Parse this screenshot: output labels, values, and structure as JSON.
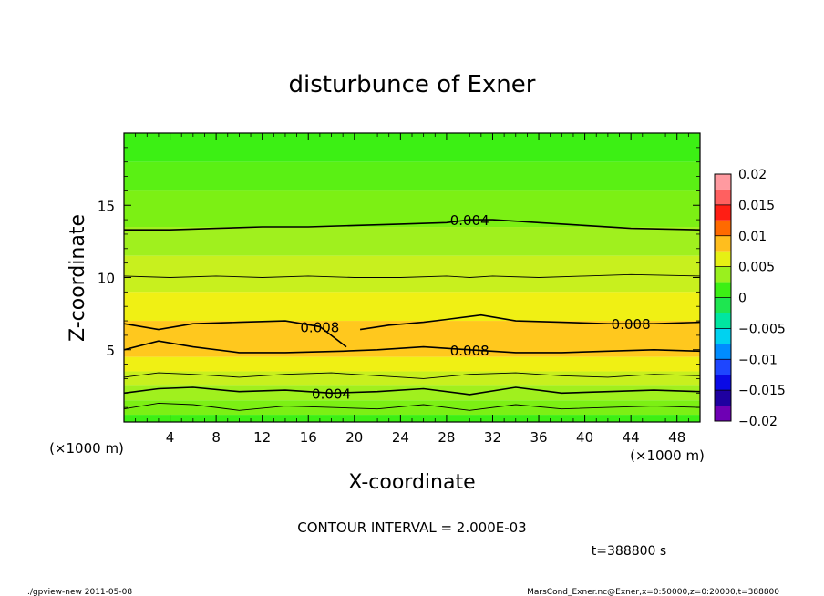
{
  "chart_data": {
    "type": "heatmap",
    "title": "disturbunce of Exner",
    "xlabel": "X-coordinate",
    "ylabel": "Z-coordinate",
    "x_unit_left": "(×1000 m)",
    "x_unit_right": "(×1000 m)",
    "xlim": [
      0,
      50
    ],
    "ylim": [
      0,
      20
    ],
    "xticks": [
      4,
      8,
      12,
      16,
      20,
      24,
      28,
      32,
      36,
      40,
      44,
      48
    ],
    "yticks": [
      5,
      10,
      15
    ],
    "colorbar": {
      "ticks": [
        0.02,
        0.015,
        0.01,
        0.005,
        0,
        -0.005,
        -0.01,
        -0.015,
        -0.02
      ],
      "tick_labels": [
        "0.02",
        "0.015",
        "0.01",
        "0.005",
        "0",
        "−0.005",
        "−0.01",
        "−0.015",
        "−0.02"
      ],
      "levels": [
        {
          "from": 0.0175,
          "to": 0.02,
          "color": "#ff9aa0"
        },
        {
          "from": 0.015,
          "to": 0.0175,
          "color": "#ff6060"
        },
        {
          "from": 0.0125,
          "to": 0.015,
          "color": "#ff1e14"
        },
        {
          "from": 0.01,
          "to": 0.0125,
          "color": "#ff6a00"
        },
        {
          "from": 0.0075,
          "to": 0.01,
          "color": "#ffbe1e"
        },
        {
          "from": 0.005,
          "to": 0.0075,
          "color": "#e6f014"
        },
        {
          "from": 0.0025,
          "to": 0.005,
          "color": "#9af01e"
        },
        {
          "from": 0,
          "to": 0.0025,
          "color": "#3cf014"
        },
        {
          "from": -0.0025,
          "to": 0,
          "color": "#1ee650"
        },
        {
          "from": -0.005,
          "to": -0.0025,
          "color": "#00e6a0"
        },
        {
          "from": -0.0075,
          "to": -0.005,
          "color": "#00d2f0"
        },
        {
          "from": -0.01,
          "to": -0.0075,
          "color": "#008cff"
        },
        {
          "from": -0.0125,
          "to": -0.01,
          "color": "#1e46ff"
        },
        {
          "from": -0.015,
          "to": -0.0125,
          "color": "#0a0ae6"
        },
        {
          "from": -0.0175,
          "to": -0.015,
          "color": "#1e00a0"
        },
        {
          "from": -0.02,
          "to": -0.0175,
          "color": "#6e00b4"
        }
      ]
    },
    "bands": [
      {
        "z_from": 18.0,
        "z_to": 20.0,
        "value": 0.002,
        "color": "#3cf014"
      },
      {
        "z_from": 16.0,
        "z_to": 18.0,
        "value": 0.003,
        "color": "#5af014"
      },
      {
        "z_from": 13.5,
        "z_to": 16.0,
        "value": 0.004,
        "color": "#7cf014"
      },
      {
        "z_from": 11.5,
        "z_to": 13.5,
        "value": 0.005,
        "color": "#a0f01e"
      },
      {
        "z_from": 9.0,
        "z_to": 11.5,
        "value": 0.0055,
        "color": "#c8f01e"
      },
      {
        "z_from": 7.0,
        "z_to": 9.0,
        "value": 0.007,
        "color": "#f0f014"
      },
      {
        "z_from": 4.5,
        "z_to": 7.0,
        "value": 0.009,
        "color": "#ffc81e"
      },
      {
        "z_from": 3.5,
        "z_to": 4.5,
        "value": 0.0065,
        "color": "#f0f014"
      },
      {
        "z_from": 2.5,
        "z_to": 3.5,
        "value": 0.0055,
        "color": "#c8f01e"
      },
      {
        "z_from": 1.5,
        "z_to": 2.5,
        "value": 0.0045,
        "color": "#a0f01e"
      },
      {
        "z_from": 0.5,
        "z_to": 1.5,
        "value": 0.003,
        "color": "#7cf014"
      },
      {
        "z_from": 0.0,
        "z_to": 0.5,
        "value": 0.0015,
        "color": "#3cf014"
      }
    ],
    "contours": [
      {
        "level": 0.004,
        "label": "0.004",
        "z": [
          13.3,
          13.3,
          13.4,
          13.5,
          13.5,
          13.6,
          13.7,
          13.8,
          14.0,
          14.0,
          13.8,
          13.6,
          13.4,
          13.3
        ],
        "x": [
          0,
          4,
          8,
          12,
          16,
          20,
          24,
          28,
          30,
          32,
          36,
          40,
          44,
          50
        ]
      },
      {
        "level": 0.006,
        "label": "",
        "z": [
          10.1,
          10.0,
          10.1,
          10.0,
          10.1,
          10.0,
          10.0,
          10.1,
          10.0,
          10.1,
          10.0,
          10.1,
          10.2,
          10.1
        ],
        "x": [
          0,
          4,
          8,
          12,
          16,
          20,
          24,
          28,
          30,
          32,
          36,
          40,
          44,
          50
        ]
      },
      {
        "level": 0.008,
        "label": "0.008",
        "z": [
          6.8,
          6.4,
          6.8,
          6.9,
          7.0,
          6.6,
          5.2
        ],
        "x": [
          0,
          3,
          6,
          10,
          14,
          17,
          19.3
        ]
      },
      {
        "level": 0.008,
        "label": "0.008",
        "z": [
          6.4,
          6.7,
          6.9,
          7.1,
          7.4,
          7.0,
          6.9,
          6.8,
          6.8,
          6.9
        ],
        "x": [
          20.5,
          23,
          26,
          28,
          31,
          34,
          38,
          42,
          46,
          50
        ]
      },
      {
        "level": 0.008,
        "label": "0.008",
        "z": [
          5.0,
          5.6,
          5.2,
          4.8,
          4.8,
          4.9,
          5.0,
          5.2,
          5.0,
          4.8,
          4.8,
          4.9,
          5.0,
          4.9
        ],
        "x": [
          0,
          3,
          6,
          10,
          14,
          19,
          22,
          26,
          30,
          34,
          38,
          42,
          46,
          50
        ]
      },
      {
        "level": 0.006,
        "label": "",
        "z": [
          3.1,
          3.4,
          3.3,
          3.1,
          3.3,
          3.4,
          3.2,
          3.0,
          3.3,
          3.4,
          3.2,
          3.1,
          3.3,
          3.2
        ],
        "x": [
          0,
          3,
          6,
          10,
          14,
          18,
          22,
          26,
          30,
          34,
          38,
          42,
          46,
          50
        ]
      },
      {
        "level": 0.004,
        "label": "0.004",
        "z": [
          2.0,
          2.3,
          2.4,
          2.1,
          2.2,
          2.0,
          2.1,
          2.3,
          1.9,
          2.4,
          2.0,
          2.1,
          2.2,
          2.1
        ],
        "x": [
          0,
          3,
          6,
          10,
          14,
          18,
          22,
          26,
          30,
          34,
          38,
          42,
          46,
          50
        ]
      },
      {
        "level": 0.002,
        "label": "",
        "z": [
          0.9,
          1.3,
          1.2,
          0.8,
          1.1,
          1.0,
          0.9,
          1.2,
          0.8,
          1.2,
          0.9,
          1.0,
          1.1,
          1.0
        ],
        "x": [
          0,
          3,
          6,
          10,
          14,
          18,
          22,
          26,
          30,
          34,
          38,
          42,
          46,
          50
        ]
      }
    ]
  },
  "contour_interval": "CONTOUR INTERVAL = 2.000E-03",
  "time_label": "t=388800 s",
  "footer_left": "./gpview-new  2011-05-08",
  "footer_right": "MarsCond_Exner.nc@Exner,x=0:50000,z=0:20000,t=388800"
}
